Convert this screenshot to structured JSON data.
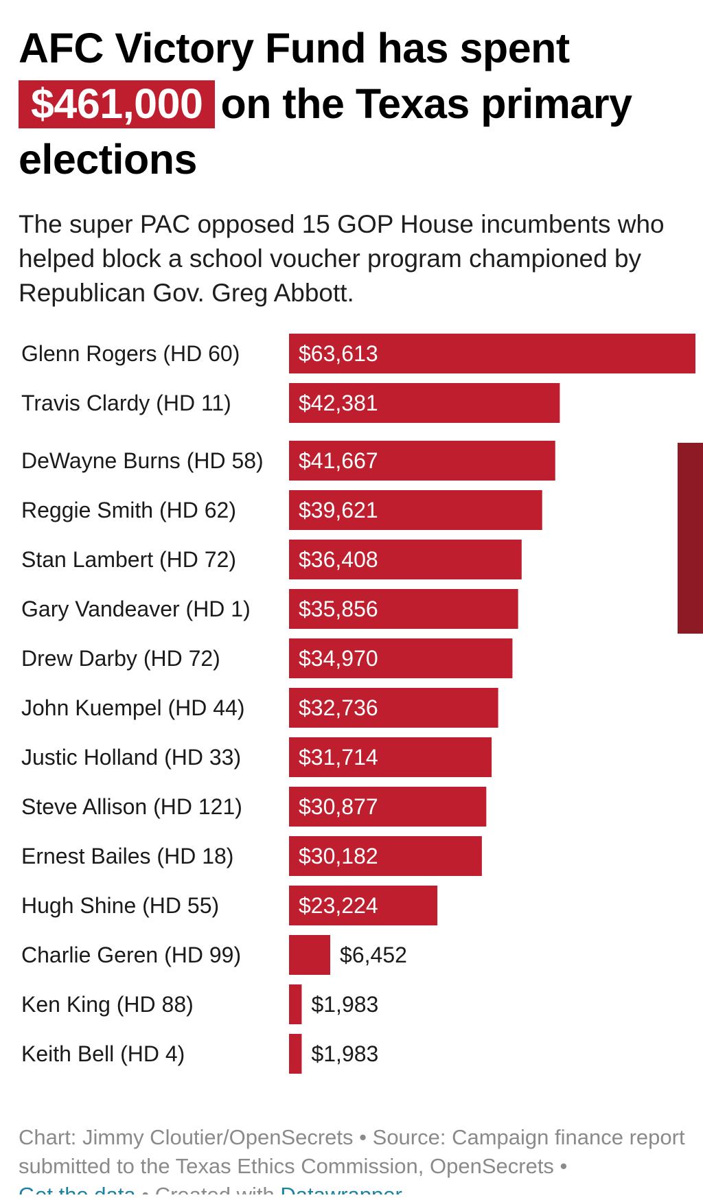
{
  "title": {
    "before": "AFC Victory Fund has spent",
    "highlight": "$461,000",
    "after": "on the Texas primary elections"
  },
  "subtitle": "The super PAC opposed 15 GOP House incumbents who helped block a school voucher program championed by Republican Gov. Greg Abbott.",
  "colors": {
    "bar": "#bf1e2e",
    "highlight_bg": "#bf1e2e",
    "scrollbar": "#8e1a26",
    "link": "#1d81a2",
    "footer_text": "#8a8a8a"
  },
  "chart_data": {
    "type": "bar",
    "orientation": "horizontal",
    "title": "AFC Victory Fund has spent $461,000 on the Texas primary elections",
    "xlabel": "",
    "ylabel": "",
    "xlim": [
      0,
      63613
    ],
    "categories": [
      "Glenn Rogers (HD 60)",
      "Travis Clardy (HD 11)",
      "DeWayne Burns (HD 58)",
      "Reggie Smith (HD 62)",
      "Stan Lambert (HD 72)",
      "Gary Vandeaver (HD 1)",
      "Drew Darby (HD 72)",
      "John Kuempel (HD 44)",
      "Justic Holland (HD 33)",
      "Steve Allison (HD 121)",
      "Ernest Bailes (HD 18)",
      "Hugh Shine (HD 55)",
      "Charlie Geren (HD 99)",
      "Ken King (HD 88)",
      "Keith Bell (HD 4)"
    ],
    "values": [
      63613,
      42381,
      41667,
      39621,
      36408,
      35856,
      34970,
      32736,
      31714,
      30877,
      30182,
      23224,
      6452,
      1983,
      1983
    ],
    "value_labels": [
      "$63,613",
      "$42,381",
      "$41,667",
      "$39,621",
      "$36,408",
      "$35,856",
      "$34,970",
      "$32,736",
      "$31,714",
      "$30,877",
      "$30,182",
      "$23,224",
      "$6,452",
      "$1,983",
      "$1,983"
    ],
    "grid": false,
    "legend": "none"
  },
  "footer": {
    "chart_prefix": "Chart: ",
    "chart_author": "Jimmy Cloutier/OpenSecrets",
    "separator": " • ",
    "source_prefix": "Source: ",
    "source": "Campaign finance report submitted to the Texas Ethics Commission, OpenSecrets",
    "get_data": "Get the data",
    "created_with": "Created with ",
    "datawrapper": "Datawrapper"
  }
}
